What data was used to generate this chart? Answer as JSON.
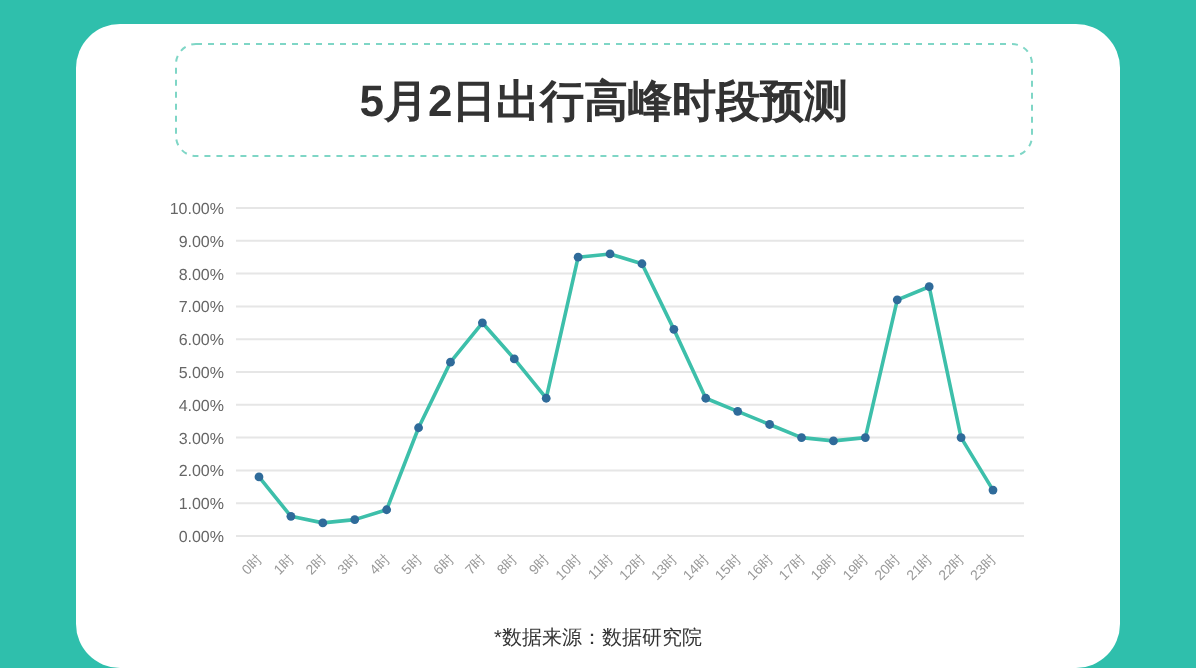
{
  "chart_data": {
    "type": "line",
    "title": "5月2日出行高峰时段预测",
    "categories": [
      "0时",
      "1时",
      "2时",
      "3时",
      "4时",
      "5时",
      "6时",
      "7时",
      "8时",
      "9时",
      "10时",
      "11时",
      "12时",
      "13时",
      "14时",
      "15时",
      "16时",
      "17时",
      "18时",
      "19时",
      "20时",
      "21时",
      "22时",
      "23时"
    ],
    "series": [
      {
        "color": "#3dbfaa",
        "values": [
          1.8,
          0.6,
          0.4,
          0.5,
          0.8,
          3.3,
          5.3,
          6.5,
          5.4,
          4.2,
          8.5,
          8.6,
          8.3,
          6.3,
          4.2,
          3.8,
          3.4,
          3.0,
          2.9,
          3.0,
          7.2,
          7.6,
          3.0,
          1.4
        ]
      }
    ],
    "ylim": [
      0,
      10
    ],
    "yticks": [
      {
        "value": 0,
        "label": "0.00%"
      },
      {
        "value": 1,
        "label": "1.00%"
      },
      {
        "value": 2,
        "label": "2.00%"
      },
      {
        "value": 3,
        "label": "3.00%"
      },
      {
        "value": 4,
        "label": "4.00%"
      },
      {
        "value": 5,
        "label": "5.00%"
      },
      {
        "value": 6,
        "label": "6.00%"
      },
      {
        "value": 7,
        "label": "7.00%"
      },
      {
        "value": 8,
        "label": "8.00%"
      },
      {
        "value": 9,
        "label": "9.00%"
      },
      {
        "value": 10,
        "label": "10.00%"
      }
    ],
    "grid": "y",
    "marker": "circle",
    "line_style": "solid",
    "annotations": [
      "*数据来源：数据研究院"
    ]
  }
}
